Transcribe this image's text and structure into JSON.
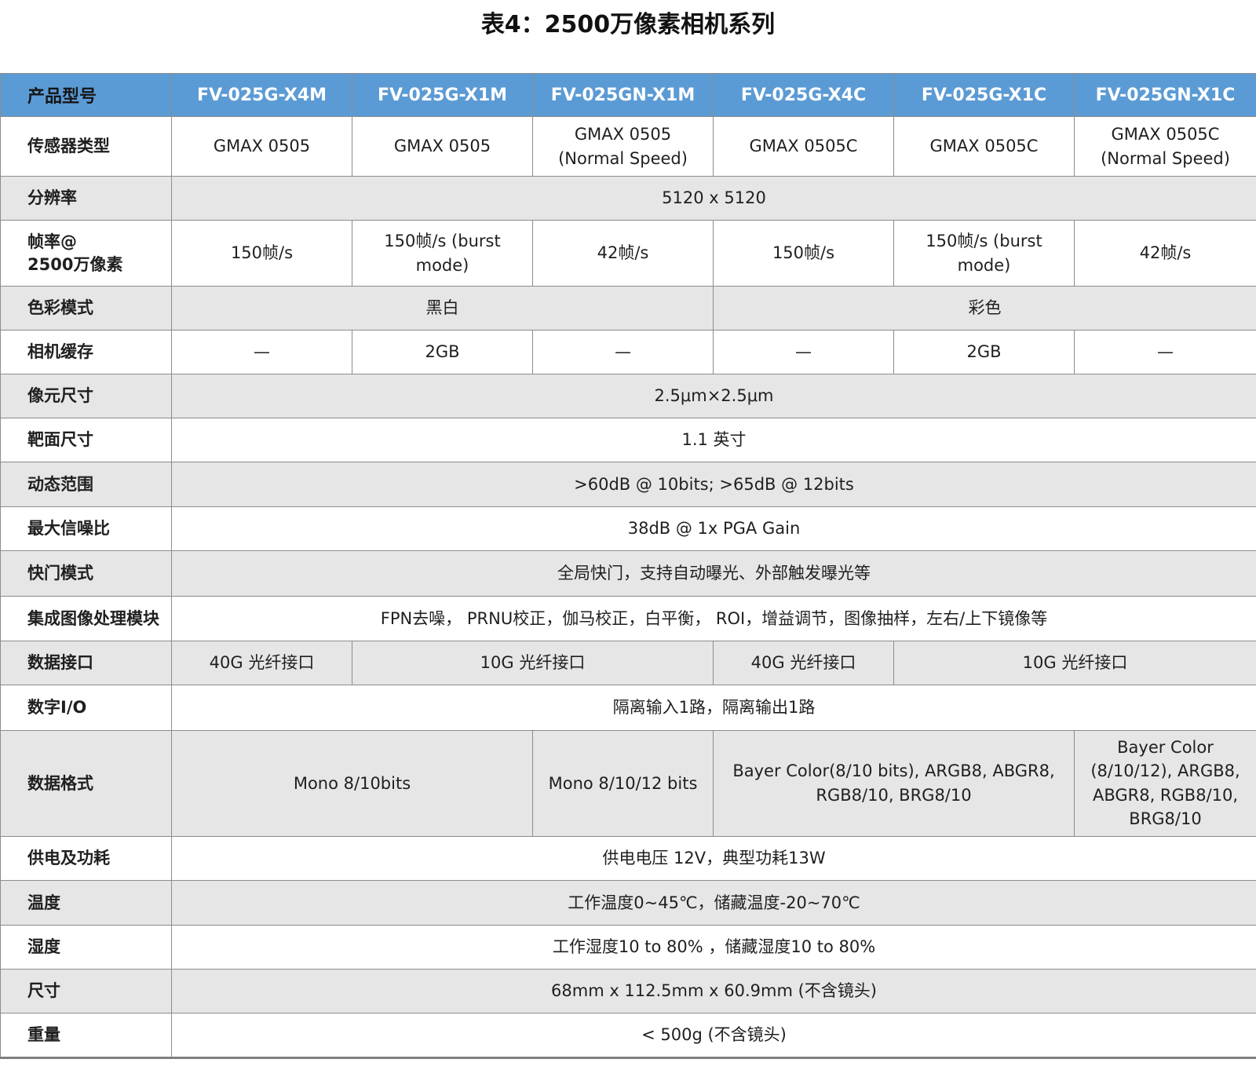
{
  "title": "表4：2500万像素相机系列",
  "colors": {
    "header_bg": "#5B9BD5",
    "header_text": "#FFFFFF",
    "row_alt_bg": "#E7E6E6",
    "border": "#8C8C8C",
    "border_heavy": "#7F7F7F",
    "text": "#1F1F1F"
  },
  "table": {
    "header": {
      "label": "产品型号",
      "models": [
        "FV-025G-X4M",
        "FV-025G-X1M",
        "FV-025GN-X1M",
        "FV-025G-X4C",
        "FV-025G-X1C",
        "FV-025GN-X1C"
      ]
    },
    "rows": [
      {
        "label": "传感器类型",
        "cells": [
          {
            "text": "GMAX 0505",
            "span": 1
          },
          {
            "text": "GMAX 0505",
            "span": 1
          },
          {
            "text": "GMAX 0505 (Normal Speed)",
            "span": 1
          },
          {
            "text": "GMAX 0505C",
            "span": 1
          },
          {
            "text": "GMAX 0505C",
            "span": 1
          },
          {
            "text": "GMAX 0505C (Normal Speed)",
            "span": 1
          }
        ]
      },
      {
        "label": "分辨率",
        "cells": [
          {
            "text": "5120 x 5120",
            "span": 6
          }
        ]
      },
      {
        "label": "帧率@\n2500万像素",
        "cells": [
          {
            "text": "150帧/s",
            "span": 1
          },
          {
            "text": "150帧/s (burst mode)",
            "span": 1
          },
          {
            "text": "42帧/s",
            "span": 1
          },
          {
            "text": "150帧/s",
            "span": 1
          },
          {
            "text": "150帧/s (burst mode)",
            "span": 1
          },
          {
            "text": "42帧/s",
            "span": 1
          }
        ]
      },
      {
        "label": "色彩模式",
        "cells": [
          {
            "text": "黑白",
            "span": 3
          },
          {
            "text": "彩色",
            "span": 3
          }
        ]
      },
      {
        "label": "相机缓存",
        "cells": [
          {
            "text": "—",
            "span": 1
          },
          {
            "text": "2GB",
            "span": 1
          },
          {
            "text": "—",
            "span": 1
          },
          {
            "text": "—",
            "span": 1
          },
          {
            "text": "2GB",
            "span": 1
          },
          {
            "text": "—",
            "span": 1
          }
        ]
      },
      {
        "label": "像元尺寸",
        "cells": [
          {
            "text": "2.5μm×2.5μm",
            "span": 6
          }
        ]
      },
      {
        "label": "靶面尺寸",
        "cells": [
          {
            "text": "1.1 英寸",
            "span": 6
          }
        ]
      },
      {
        "label": "动态范围",
        "cells": [
          {
            "text": ">60dB @ 10bits; >65dB @ 12bits",
            "span": 6
          }
        ]
      },
      {
        "label": "最大信噪比",
        "cells": [
          {
            "text": "38dB @  1x PGA Gain",
            "span": 6
          }
        ]
      },
      {
        "label": "快门模式",
        "cells": [
          {
            "text": "全局快门，支持自动曝光、外部触发曝光等",
            "span": 6
          }
        ]
      },
      {
        "label": "集成图像处理模块",
        "cells": [
          {
            "text": "FPN去噪， PRNU校正，伽马校正，白平衡， ROI，增益调节，图像抽样，左右/上下镜像等",
            "span": 6
          }
        ]
      },
      {
        "label": "数据接口",
        "cells": [
          {
            "text": "40G 光纤接口",
            "span": 1
          },
          {
            "text": "10G 光纤接口",
            "span": 2
          },
          {
            "text": "40G 光纤接口",
            "span": 1
          },
          {
            "text": "10G 光纤接口",
            "span": 2
          }
        ]
      },
      {
        "label": "数字I/O",
        "cells": [
          {
            "text": "隔离输入1路，隔离输出1路",
            "span": 6
          }
        ]
      },
      {
        "label": "数据格式",
        "cells": [
          {
            "text": "Mono 8/10bits",
            "span": 2
          },
          {
            "text": "Mono 8/10/12 bits",
            "span": 1
          },
          {
            "text": "Bayer Color(8/10 bits), ARGB8, ABGR8, RGB8/10, BRG8/10",
            "span": 2
          },
          {
            "text": "Bayer Color (8/10/12), ARGB8, ABGR8, RGB8/10, BRG8/10",
            "span": 1
          }
        ]
      },
      {
        "label": "供电及功耗",
        "cells": [
          {
            "text": "供电电压 12V，典型功耗13W",
            "span": 6
          }
        ]
      },
      {
        "label": "温度",
        "cells": [
          {
            "text": "工作温度0~45℃，储藏温度-20~70℃",
            "span": 6
          }
        ]
      },
      {
        "label": "湿度",
        "cells": [
          {
            "text": "工作湿度10 to 80% ，储藏湿度10 to 80%",
            "span": 6
          }
        ]
      },
      {
        "label": "尺寸",
        "cells": [
          {
            "text": "68mm x 112.5mm x 60.9mm (不含镜头)",
            "span": 6
          }
        ]
      },
      {
        "label": "重量",
        "cells": [
          {
            "text": "< 500g (不含镜头)",
            "span": 6
          }
        ]
      }
    ]
  }
}
